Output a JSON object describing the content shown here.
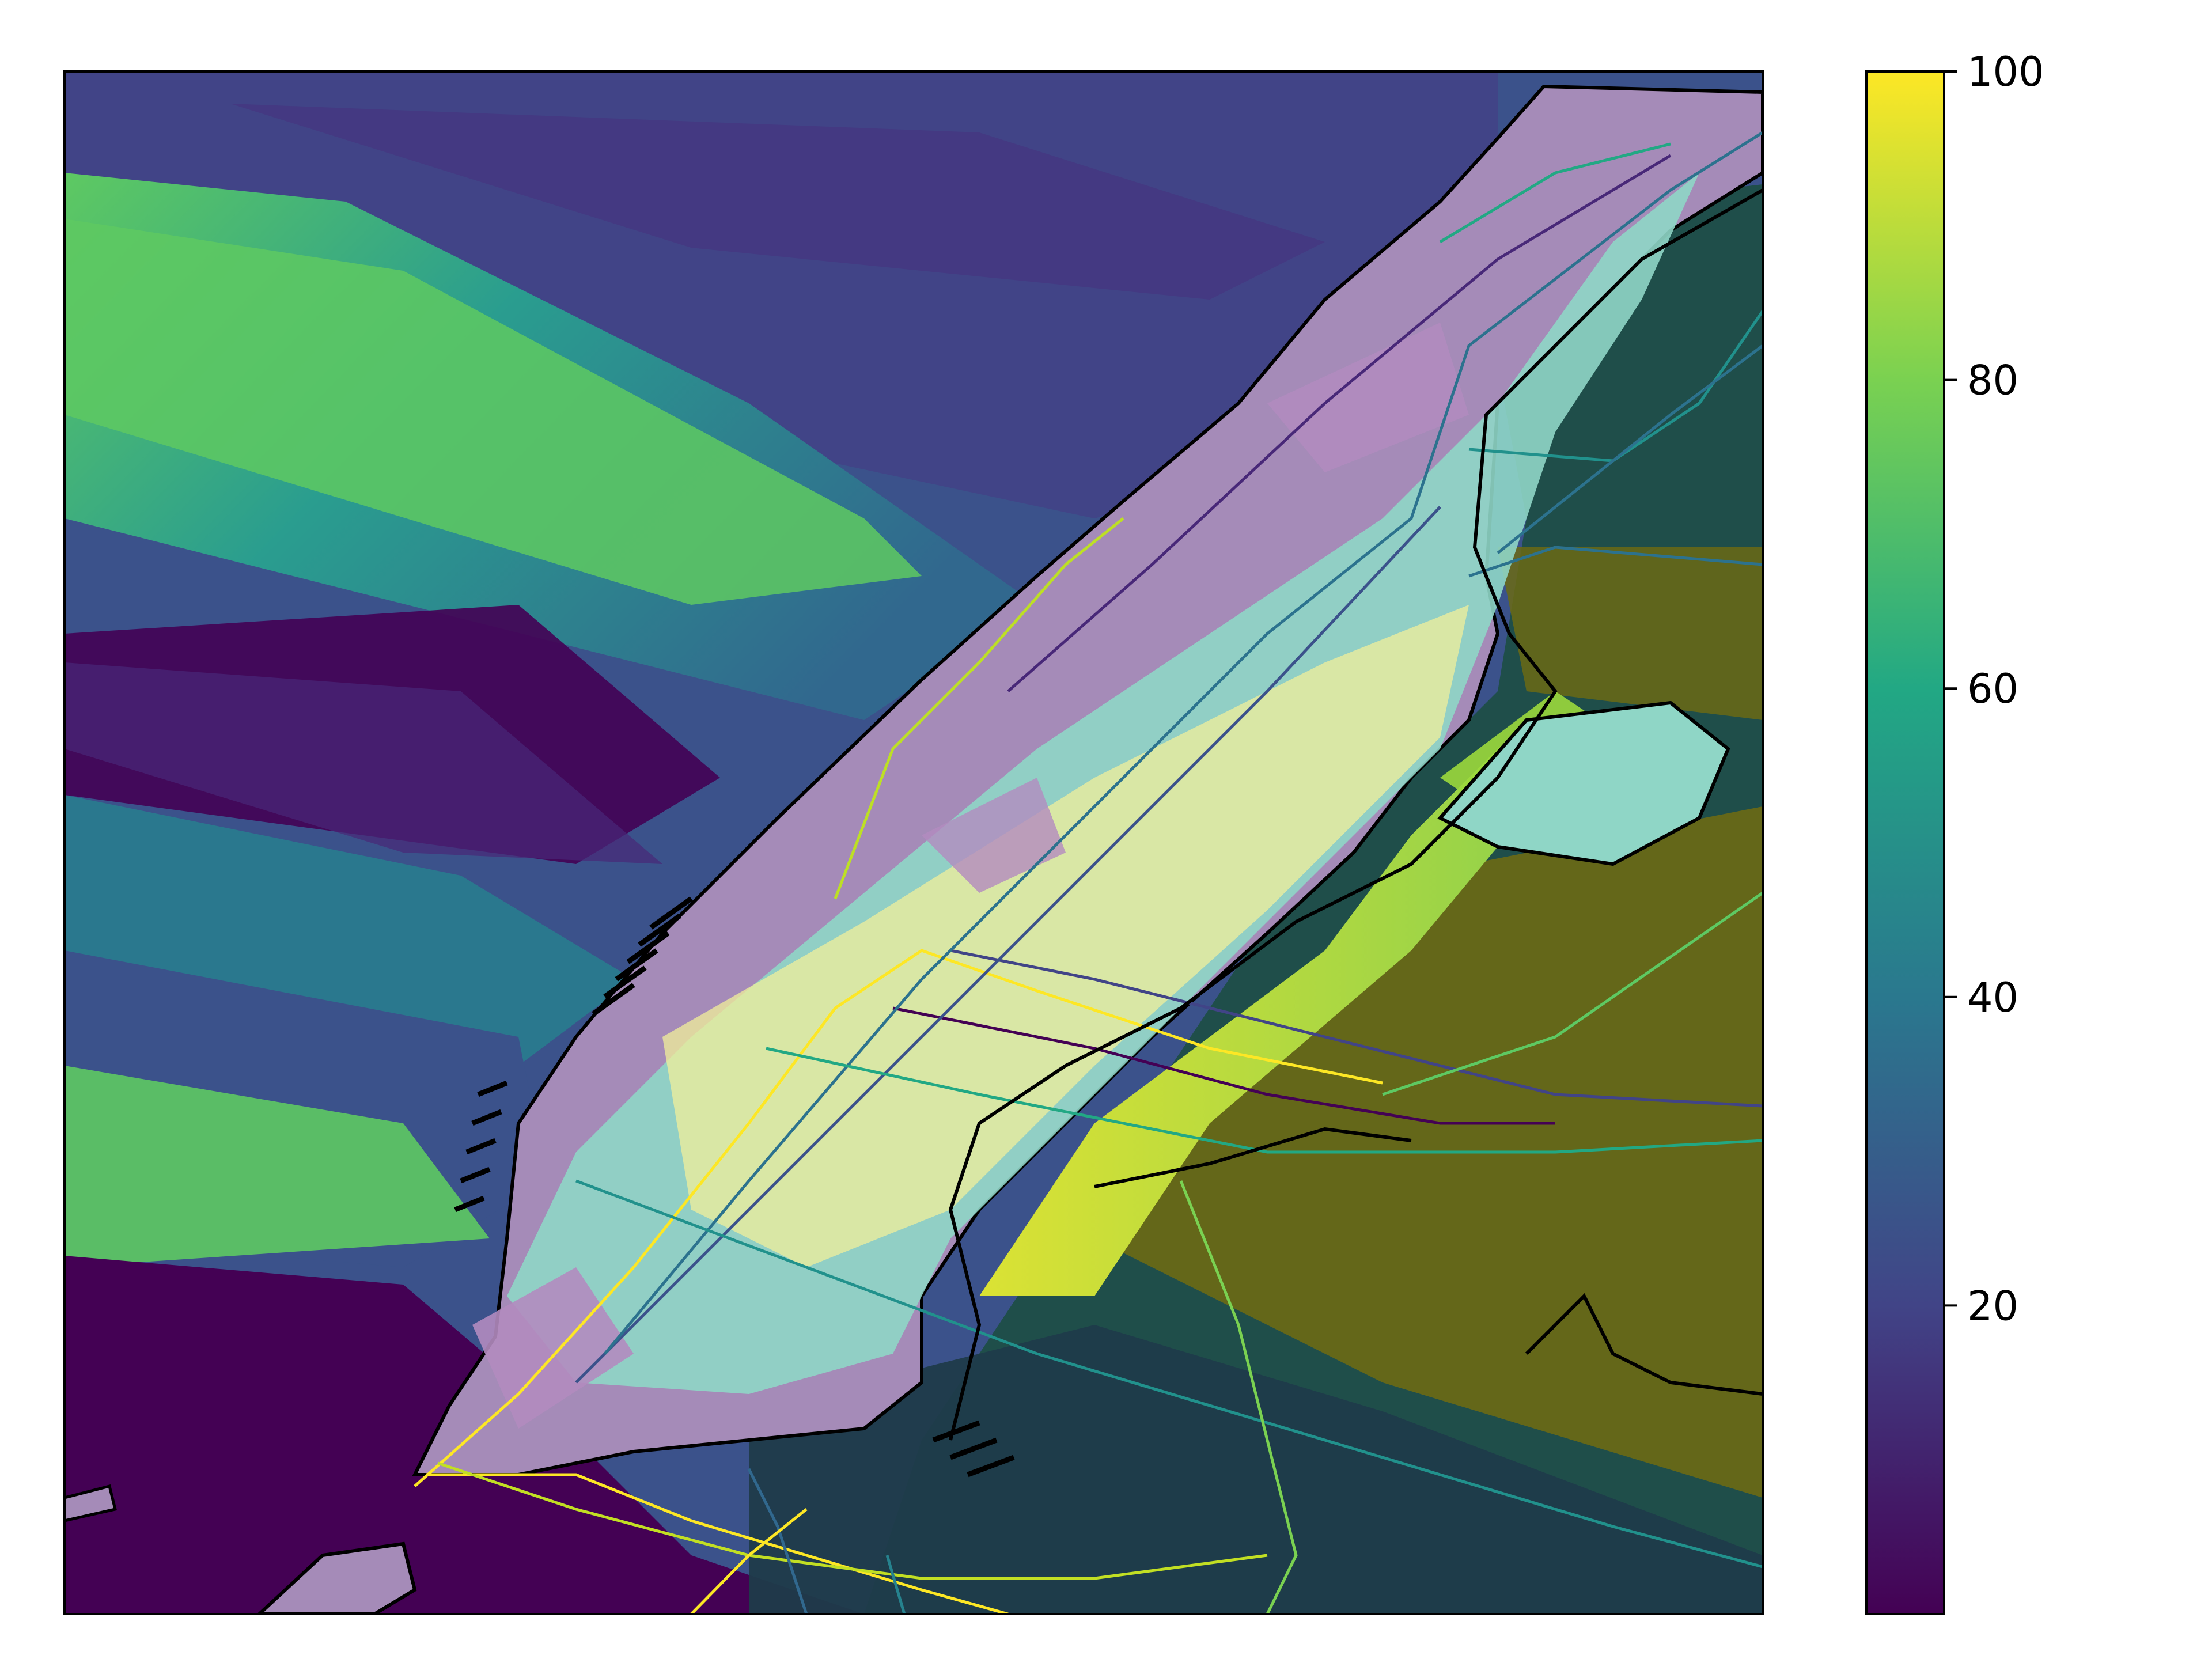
{
  "map": {
    "basemap_colors": {
      "water_dark": "#440154",
      "water_mid": "#31688e",
      "water_teal": "#21918c",
      "water_green": "#5ec962",
      "land_tint": "#a58bb8",
      "frame": "#000000"
    },
    "overlay": "subway-lines"
  },
  "colorbar": {
    "colormap": "viridis",
    "range": [
      0,
      100
    ],
    "ticks": [
      {
        "value": 100,
        "label": "100"
      },
      {
        "value": 80,
        "label": "80"
      },
      {
        "value": 60,
        "label": "60"
      },
      {
        "value": 40,
        "label": "40"
      },
      {
        "value": 20,
        "label": "20"
      }
    ]
  }
}
